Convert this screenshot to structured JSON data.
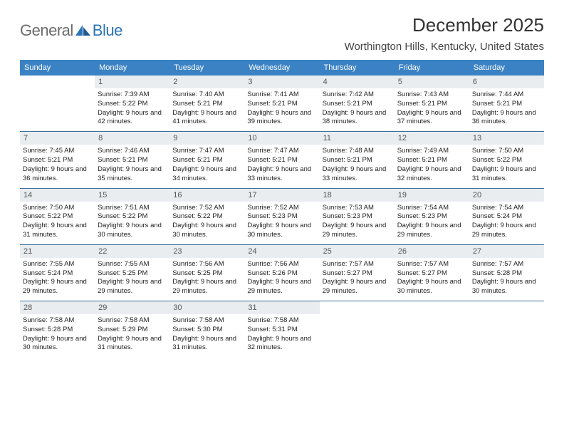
{
  "logo": {
    "text1": "General",
    "text2": "Blue"
  },
  "title": "December 2025",
  "location": "Worthington Hills, Kentucky, United States",
  "colors": {
    "header_bg": "#3b82c4",
    "header_text": "#ffffff",
    "daynum_bg": "#e9edf0",
    "week_border": "#3b6fa0",
    "logo_gray": "#6b6b6b",
    "logo_blue": "#2b73b8"
  },
  "day_names": [
    "Sunday",
    "Monday",
    "Tuesday",
    "Wednesday",
    "Thursday",
    "Friday",
    "Saturday"
  ],
  "weeks": [
    [
      {
        "n": "",
        "sr": "",
        "ss": "",
        "dl": ""
      },
      {
        "n": "1",
        "sr": "Sunrise: 7:39 AM",
        "ss": "Sunset: 5:22 PM",
        "dl": "Daylight: 9 hours and 42 minutes."
      },
      {
        "n": "2",
        "sr": "Sunrise: 7:40 AM",
        "ss": "Sunset: 5:21 PM",
        "dl": "Daylight: 9 hours and 41 minutes."
      },
      {
        "n": "3",
        "sr": "Sunrise: 7:41 AM",
        "ss": "Sunset: 5:21 PM",
        "dl": "Daylight: 9 hours and 39 minutes."
      },
      {
        "n": "4",
        "sr": "Sunrise: 7:42 AM",
        "ss": "Sunset: 5:21 PM",
        "dl": "Daylight: 9 hours and 38 minutes."
      },
      {
        "n": "5",
        "sr": "Sunrise: 7:43 AM",
        "ss": "Sunset: 5:21 PM",
        "dl": "Daylight: 9 hours and 37 minutes."
      },
      {
        "n": "6",
        "sr": "Sunrise: 7:44 AM",
        "ss": "Sunset: 5:21 PM",
        "dl": "Daylight: 9 hours and 36 minutes."
      }
    ],
    [
      {
        "n": "7",
        "sr": "Sunrise: 7:45 AM",
        "ss": "Sunset: 5:21 PM",
        "dl": "Daylight: 9 hours and 36 minutes."
      },
      {
        "n": "8",
        "sr": "Sunrise: 7:46 AM",
        "ss": "Sunset: 5:21 PM",
        "dl": "Daylight: 9 hours and 35 minutes."
      },
      {
        "n": "9",
        "sr": "Sunrise: 7:47 AM",
        "ss": "Sunset: 5:21 PM",
        "dl": "Daylight: 9 hours and 34 minutes."
      },
      {
        "n": "10",
        "sr": "Sunrise: 7:47 AM",
        "ss": "Sunset: 5:21 PM",
        "dl": "Daylight: 9 hours and 33 minutes."
      },
      {
        "n": "11",
        "sr": "Sunrise: 7:48 AM",
        "ss": "Sunset: 5:21 PM",
        "dl": "Daylight: 9 hours and 33 minutes."
      },
      {
        "n": "12",
        "sr": "Sunrise: 7:49 AM",
        "ss": "Sunset: 5:21 PM",
        "dl": "Daylight: 9 hours and 32 minutes."
      },
      {
        "n": "13",
        "sr": "Sunrise: 7:50 AM",
        "ss": "Sunset: 5:22 PM",
        "dl": "Daylight: 9 hours and 31 minutes."
      }
    ],
    [
      {
        "n": "14",
        "sr": "Sunrise: 7:50 AM",
        "ss": "Sunset: 5:22 PM",
        "dl": "Daylight: 9 hours and 31 minutes."
      },
      {
        "n": "15",
        "sr": "Sunrise: 7:51 AM",
        "ss": "Sunset: 5:22 PM",
        "dl": "Daylight: 9 hours and 30 minutes."
      },
      {
        "n": "16",
        "sr": "Sunrise: 7:52 AM",
        "ss": "Sunset: 5:22 PM",
        "dl": "Daylight: 9 hours and 30 minutes."
      },
      {
        "n": "17",
        "sr": "Sunrise: 7:52 AM",
        "ss": "Sunset: 5:23 PM",
        "dl": "Daylight: 9 hours and 30 minutes."
      },
      {
        "n": "18",
        "sr": "Sunrise: 7:53 AM",
        "ss": "Sunset: 5:23 PM",
        "dl": "Daylight: 9 hours and 29 minutes."
      },
      {
        "n": "19",
        "sr": "Sunrise: 7:54 AM",
        "ss": "Sunset: 5:23 PM",
        "dl": "Daylight: 9 hours and 29 minutes."
      },
      {
        "n": "20",
        "sr": "Sunrise: 7:54 AM",
        "ss": "Sunset: 5:24 PM",
        "dl": "Daylight: 9 hours and 29 minutes."
      }
    ],
    [
      {
        "n": "21",
        "sr": "Sunrise: 7:55 AM",
        "ss": "Sunset: 5:24 PM",
        "dl": "Daylight: 9 hours and 29 minutes."
      },
      {
        "n": "22",
        "sr": "Sunrise: 7:55 AM",
        "ss": "Sunset: 5:25 PM",
        "dl": "Daylight: 9 hours and 29 minutes."
      },
      {
        "n": "23",
        "sr": "Sunrise: 7:56 AM",
        "ss": "Sunset: 5:25 PM",
        "dl": "Daylight: 9 hours and 29 minutes."
      },
      {
        "n": "24",
        "sr": "Sunrise: 7:56 AM",
        "ss": "Sunset: 5:26 PM",
        "dl": "Daylight: 9 hours and 29 minutes."
      },
      {
        "n": "25",
        "sr": "Sunrise: 7:57 AM",
        "ss": "Sunset: 5:27 PM",
        "dl": "Daylight: 9 hours and 29 minutes."
      },
      {
        "n": "26",
        "sr": "Sunrise: 7:57 AM",
        "ss": "Sunset: 5:27 PM",
        "dl": "Daylight: 9 hours and 30 minutes."
      },
      {
        "n": "27",
        "sr": "Sunrise: 7:57 AM",
        "ss": "Sunset: 5:28 PM",
        "dl": "Daylight: 9 hours and 30 minutes."
      }
    ],
    [
      {
        "n": "28",
        "sr": "Sunrise: 7:58 AM",
        "ss": "Sunset: 5:28 PM",
        "dl": "Daylight: 9 hours and 30 minutes."
      },
      {
        "n": "29",
        "sr": "Sunrise: 7:58 AM",
        "ss": "Sunset: 5:29 PM",
        "dl": "Daylight: 9 hours and 31 minutes."
      },
      {
        "n": "30",
        "sr": "Sunrise: 7:58 AM",
        "ss": "Sunset: 5:30 PM",
        "dl": "Daylight: 9 hours and 31 minutes."
      },
      {
        "n": "31",
        "sr": "Sunrise: 7:58 AM",
        "ss": "Sunset: 5:31 PM",
        "dl": "Daylight: 9 hours and 32 minutes."
      },
      {
        "n": "",
        "sr": "",
        "ss": "",
        "dl": ""
      },
      {
        "n": "",
        "sr": "",
        "ss": "",
        "dl": ""
      },
      {
        "n": "",
        "sr": "",
        "ss": "",
        "dl": ""
      }
    ]
  ]
}
